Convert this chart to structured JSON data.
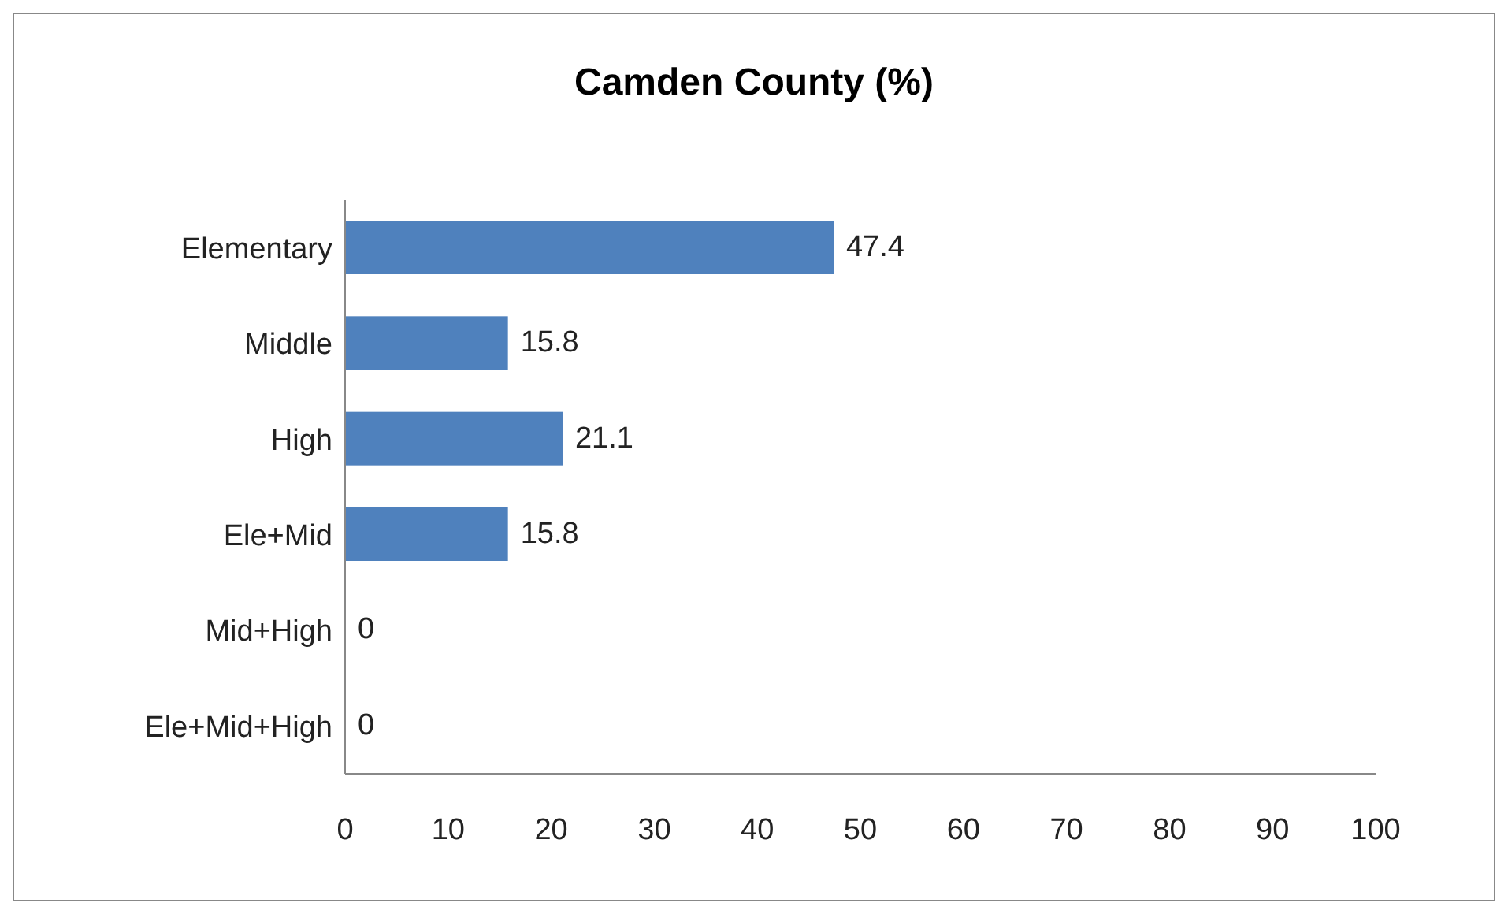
{
  "chart_data": {
    "type": "bar",
    "title": "Camden County (%)",
    "orientation": "horizontal",
    "categories": [
      "Elementary",
      "Middle",
      "High",
      "Ele+Mid",
      "Mid+High",
      "Ele+Mid+High"
    ],
    "values": [
      47.4,
      15.8,
      21.1,
      15.8,
      0,
      0
    ],
    "color": "#4f81bd",
    "xlim": [
      0,
      100
    ],
    "xticks": [
      0,
      10,
      20,
      30,
      40,
      50,
      60,
      70,
      80,
      90,
      100
    ],
    "data_labels": true,
    "grid": false,
    "legend": false
  }
}
